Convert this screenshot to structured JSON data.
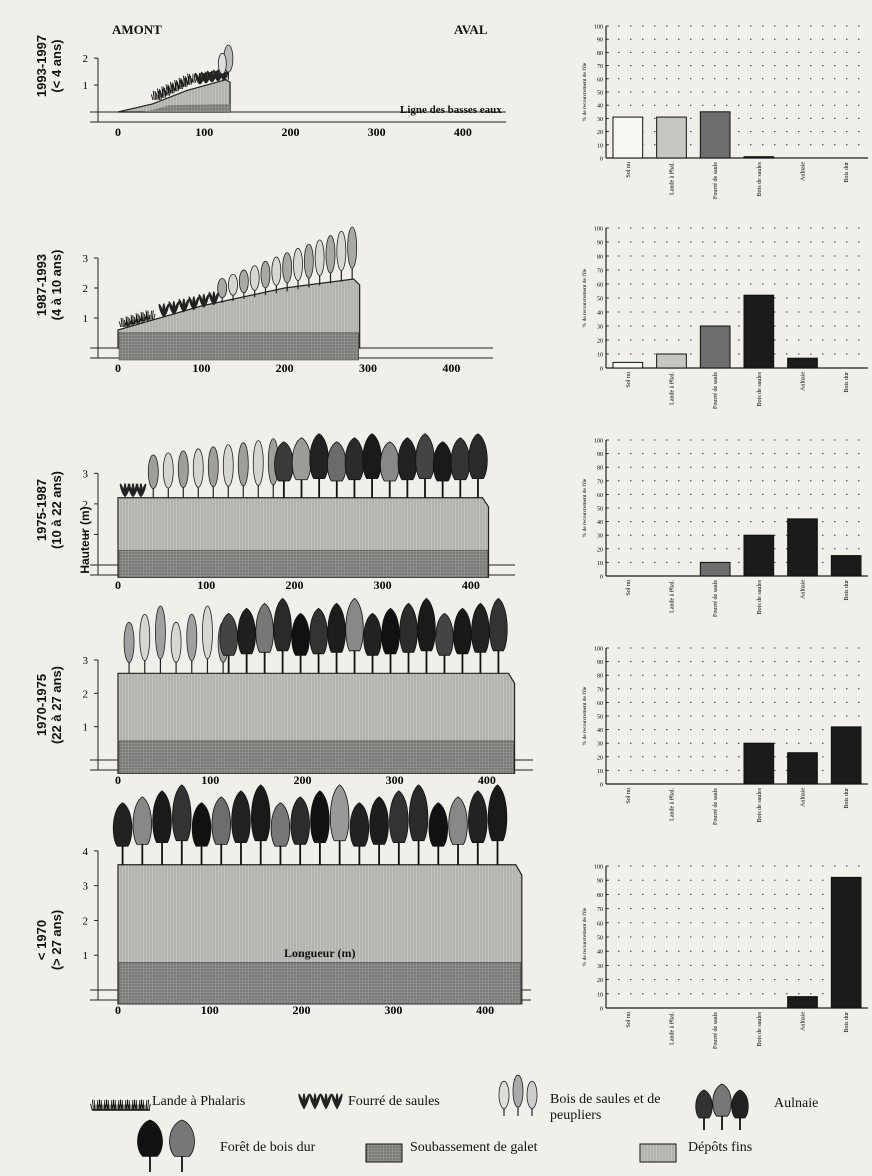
{
  "page": {
    "upstream": "AMONT",
    "downstream": "AVAL",
    "low_water": "Ligne des basses eaux",
    "xlabel": "Longueur (m)",
    "ylabel": "Hauteur (m)"
  },
  "bar_ylabel": "% de recouvrement de l'île",
  "colors": {
    "bar_dark": "#1b1b1b",
    "bar_white": "#f6f6f3",
    "bar_light": "#c6c6c2",
    "bar_mid": "#6d6d6d",
    "base": "#9a9a96",
    "fines": "#c2c2bd"
  },
  "panels": [
    {
      "period": "1993-1997",
      "age": "(< 4 ans)",
      "profile_end": 130,
      "profile_height": 1.2,
      "ymax": 2
    },
    {
      "period": "1987-1993",
      "age": "(4 à 10 ans)",
      "profile_end": 290,
      "profile_height": 2.3,
      "ymax": 3
    },
    {
      "period": "1975-1987",
      "age": "(10 à 22 ans)",
      "profile_end": 420,
      "profile_height": 2.2,
      "ymax": 3
    },
    {
      "period": "1970-1975",
      "age": "(22 à 27 ans)",
      "profile_end": 430,
      "profile_height": 2.6,
      "ymax": 3
    },
    {
      "period": "< 1970",
      "age": "(> 27 ans)",
      "profile_end": 440,
      "profile_height": 3.6,
      "ymax": 4
    }
  ],
  "chart_data": [
    {
      "type": "area",
      "title": "1993-1997 (< 4 ans)",
      "xlabel": "",
      "ylabel": "",
      "x": [
        0,
        100,
        200,
        300,
        400
      ],
      "ylim": [
        0,
        2
      ],
      "xlim": [
        0,
        450
      ],
      "profile": {
        "x": [
          0,
          40,
          80,
          130
        ],
        "y": [
          0.1,
          0.4,
          0.9,
          1.2
        ]
      },
      "legend": "bottom"
    },
    {
      "type": "bar",
      "title": "1993-1997",
      "categories": [
        "Sol nu",
        "Lande à Phal.",
        "Fourré de saule",
        "Bois de saules",
        "Aulnaie",
        "Bois dur"
      ],
      "values": [
        31,
        31,
        35,
        1,
        0,
        0
      ],
      "ylim": [
        0,
        100
      ],
      "ylabel": "% de recouvrement de l'île"
    },
    {
      "type": "area",
      "title": "1987-1993 (4 à 10 ans)",
      "x": [
        0,
        100,
        200,
        300,
        400
      ],
      "ylim": [
        0,
        3
      ],
      "xlim": [
        0,
        450
      ],
      "profile": {
        "x": [
          0,
          100,
          200,
          290
        ],
        "y": [
          0.5,
          1.3,
          2.0,
          2.3
        ]
      }
    },
    {
      "type": "bar",
      "title": "1987-1993",
      "categories": [
        "Sol nu",
        "Lande à Phal.",
        "Fourré de saule",
        "Bois de saules",
        "Aulnaie",
        "Bois dur"
      ],
      "values": [
        4,
        10,
        30,
        52,
        7,
        0
      ],
      "ylim": [
        0,
        100
      ],
      "ylabel": "% de recouvrement de l'île"
    },
    {
      "type": "area",
      "title": "1975-1987 (10 à 22 ans)",
      "ylabel": "Hauteur (m)",
      "x": [
        0,
        100,
        200,
        300,
        400
      ],
      "ylim": [
        0,
        3
      ],
      "xlim": [
        0,
        450
      ],
      "profile": {
        "x": [
          0,
          420
        ],
        "y": [
          2.2,
          2.2
        ]
      }
    },
    {
      "type": "bar",
      "title": "1975-1987",
      "categories": [
        "Sol nu",
        "Lande à Phal.",
        "Fourré de saule",
        "Bois de saules",
        "Aulnaie",
        "Bois dur"
      ],
      "values": [
        0,
        0,
        10,
        30,
        42,
        15
      ],
      "ylim": [
        0,
        100
      ],
      "ylabel": "% de recouvrement de l'île"
    },
    {
      "type": "area",
      "title": "1970-1975 (22 à 27 ans)",
      "x": [
        0,
        100,
        200,
        300,
        400
      ],
      "ylim": [
        0,
        3
      ],
      "xlim": [
        0,
        450
      ],
      "profile": {
        "x": [
          0,
          430
        ],
        "y": [
          2.6,
          2.6
        ]
      }
    },
    {
      "type": "bar",
      "title": "1970-1975",
      "categories": [
        "Sol nu",
        "Lande à Phal.",
        "Fourré de saule",
        "Bois de saules",
        "Aulnaie",
        "Bois dur"
      ],
      "values": [
        0,
        0,
        0,
        30,
        23,
        42
      ],
      "ylim": [
        0,
        100
      ],
      "ylabel": "% de recouvrement de l'île"
    },
    {
      "type": "area",
      "title": "< 1970 (> 27 ans)",
      "xlabel": "Longueur (m)",
      "x": [
        0,
        100,
        200,
        300,
        400
      ],
      "ylim": [
        0,
        4
      ],
      "xlim": [
        0,
        450
      ],
      "profile": {
        "x": [
          0,
          440
        ],
        "y": [
          3.6,
          3.6
        ]
      }
    },
    {
      "type": "bar",
      "title": "< 1970",
      "categories": [
        "Sol nu",
        "Lande à Phal.",
        "Fourré de saule",
        "Bois de saules",
        "Aulnaie",
        "Bois dur"
      ],
      "values": [
        0,
        0,
        0,
        0,
        8,
        92
      ],
      "ylim": [
        0,
        100
      ],
      "ylabel": "% de recouvrement de l'île"
    }
  ],
  "bar_colors": [
    "bar_white",
    "bar_light",
    "bar_mid",
    "bar_dark",
    "bar_dark",
    "bar_dark"
  ],
  "legend": [
    {
      "key": "lande",
      "label": "Lande à Phalaris"
    },
    {
      "key": "fourre",
      "label": "Fourré de saules"
    },
    {
      "key": "bois_saules",
      "label": "Bois de saules et de peupliers"
    },
    {
      "key": "aulnaie",
      "label": "Aulnaie"
    },
    {
      "key": "foret",
      "label": "Forêt de bois dur"
    },
    {
      "key": "soubassement",
      "label": "Soubassement de galet"
    },
    {
      "key": "depots",
      "label": "Dépôts fins"
    }
  ]
}
